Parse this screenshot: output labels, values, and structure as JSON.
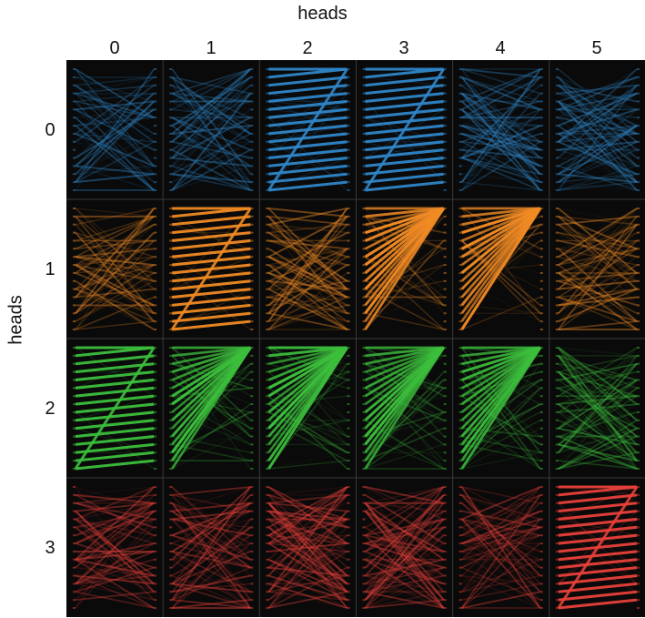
{
  "axis": {
    "column_title": "heads",
    "row_title": "heads",
    "column_labels": [
      "0",
      "1",
      "2",
      "3",
      "4",
      "5"
    ],
    "row_labels": [
      "0",
      "1",
      "2",
      "3"
    ]
  },
  "colors": {
    "background": "#0a0a0a",
    "cell_border": "#3a3a3a",
    "rows": [
      "#2f86c8",
      "#f08a24",
      "#3cbf3c",
      "#e8403a"
    ]
  }
}
